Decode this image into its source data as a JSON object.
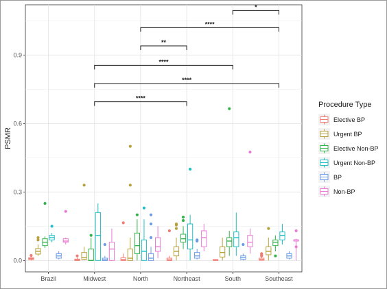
{
  "chart_data": {
    "type": "box",
    "ylabel": "PSMR",
    "yticks": [
      0.0,
      0.3,
      0.6,
      0.9
    ],
    "ylim": [
      -0.05,
      1.12
    ],
    "grid": true,
    "categories": [
      "Brazil",
      "Midwest",
      "North",
      "Northeast",
      "South",
      "Southeast"
    ],
    "legend": {
      "title": "Procedure Type",
      "placement": "right",
      "entries": [
        "Elective BP",
        "Urgent BP",
        "Elective Non-BP",
        "Urgent Non-BP",
        "BP",
        "Non-BP"
      ]
    },
    "colors": {
      "Elective BP": "#f07c74",
      "Urgent BP": "#b7a13a",
      "Elective Non-BP": "#32b34a",
      "Urgent Non-BP": "#1fbfc4",
      "BP": "#6c9be8",
      "Non-BP": "#e87bd3"
    },
    "series": [
      {
        "name": "Elective BP",
        "boxes": [
          {
            "min": 0.0,
            "q1": 0.004,
            "median": 0.008,
            "q3": 0.012,
            "max": 0.015,
            "outliers": [
              0.022
            ]
          },
          {
            "min": 0.0,
            "q1": 0.0,
            "median": 0.002,
            "q3": 0.006,
            "max": 0.012,
            "outliers": [
              0.02
            ]
          },
          {
            "min": 0.0,
            "q1": 0.0,
            "median": 0.004,
            "q3": 0.012,
            "max": 0.03,
            "outliers": [
              0.165
            ]
          },
          {
            "min": 0.0,
            "q1": 0.0,
            "median": 0.003,
            "q3": 0.01,
            "max": 0.02,
            "outliers": [
              0.13
            ]
          },
          {
            "min": 0.0,
            "q1": 0.0,
            "median": 0.002,
            "q3": 0.004,
            "max": 0.006,
            "outliers": []
          },
          {
            "min": 0.0,
            "q1": 0.001,
            "median": 0.004,
            "q3": 0.01,
            "max": 0.015,
            "outliers": [
              0.02,
              0.025,
              0.03
            ]
          }
        ]
      },
      {
        "name": "Urgent BP",
        "boxes": [
          {
            "min": 0.02,
            "q1": 0.028,
            "median": 0.04,
            "q3": 0.052,
            "max": 0.07,
            "outliers": [
              0.09,
              0.1
            ]
          },
          {
            "min": 0.0,
            "q1": 0.005,
            "median": 0.012,
            "q3": 0.035,
            "max": 0.06,
            "outliers": [
              0.33
            ]
          },
          {
            "min": 0.0,
            "q1": 0.0,
            "median": 0.01,
            "q3": 0.05,
            "max": 0.1,
            "outliers": [
              0.33,
              0.5
            ]
          },
          {
            "min": 0.0,
            "q1": 0.02,
            "median": 0.04,
            "q3": 0.06,
            "max": 0.1,
            "outliers": [
              0.14,
              0.155,
              0.16
            ]
          },
          {
            "min": 0.0,
            "q1": 0.015,
            "median": 0.035,
            "q3": 0.06,
            "max": 0.1,
            "outliers": []
          },
          {
            "min": 0.0,
            "q1": 0.025,
            "median": 0.04,
            "q3": 0.06,
            "max": 0.1,
            "outliers": [
              0.14
            ]
          }
        ]
      },
      {
        "name": "Elective Non-BP",
        "boxes": [
          {
            "min": 0.055,
            "q1": 0.065,
            "median": 0.08,
            "q3": 0.095,
            "max": 0.105,
            "outliers": [
              0.25
            ]
          },
          {
            "min": 0.0,
            "q1": 0.0,
            "median": 0.0,
            "q3": 0.05,
            "max": 0.1,
            "outliers": [
              0.11
            ]
          },
          {
            "min": 0.0,
            "q1": 0.03,
            "median": 0.065,
            "q3": 0.12,
            "max": 0.18,
            "outliers": [
              0.2
            ]
          },
          {
            "min": 0.05,
            "q1": 0.08,
            "median": 0.095,
            "q3": 0.115,
            "max": 0.15,
            "outliers": [
              0.19,
              0.175
            ]
          },
          {
            "min": 0.02,
            "q1": 0.06,
            "median": 0.085,
            "q3": 0.1,
            "max": 0.13,
            "outliers": [
              0.665
            ]
          },
          {
            "min": 0.04,
            "q1": 0.065,
            "median": 0.08,
            "q3": 0.09,
            "max": 0.11,
            "outliers": [
              0.02
            ]
          }
        ]
      },
      {
        "name": "Urgent Non-BP",
        "boxes": [
          {
            "min": 0.08,
            "q1": 0.09,
            "median": 0.1,
            "q3": 0.11,
            "max": 0.12,
            "outliers": [
              0.15
            ]
          },
          {
            "min": 0.0,
            "q1": 0.0,
            "median": 0.11,
            "q3": 0.21,
            "max": 0.25,
            "outliers": []
          },
          {
            "min": 0.0,
            "q1": 0.0,
            "median": 0.04,
            "q3": 0.09,
            "max": 0.18,
            "outliers": [
              0.23
            ]
          },
          {
            "min": 0.0,
            "q1": 0.05,
            "median": 0.09,
            "q3": 0.16,
            "max": 0.2,
            "outliers": [
              0.4
            ]
          },
          {
            "min": 0.02,
            "q1": 0.06,
            "median": 0.1,
            "q3": 0.125,
            "max": 0.21,
            "outliers": []
          },
          {
            "min": 0.07,
            "q1": 0.09,
            "median": 0.11,
            "q3": 0.125,
            "max": 0.16,
            "outliers": []
          }
        ]
      },
      {
        "name": "BP",
        "boxes": [
          {
            "min": 0.005,
            "q1": 0.01,
            "median": 0.02,
            "q3": 0.03,
            "max": 0.04,
            "outliers": []
          },
          {
            "min": 0.0,
            "q1": 0.0,
            "median": 0.003,
            "q3": 0.01,
            "max": 0.02,
            "outliers": [
              0.07
            ]
          },
          {
            "min": 0.0,
            "q1": 0.0,
            "median": 0.01,
            "q3": 0.03,
            "max": 0.06,
            "outliers": [
              0.2,
              0.16,
              0.1
            ]
          },
          {
            "min": 0.005,
            "q1": 0.01,
            "median": 0.02,
            "q3": 0.035,
            "max": 0.05,
            "outliers": [
              0.09,
              0.085
            ]
          },
          {
            "min": 0.0,
            "q1": 0.005,
            "median": 0.012,
            "q3": 0.02,
            "max": 0.03,
            "outliers": [
              0.07
            ]
          },
          {
            "min": 0.005,
            "q1": 0.01,
            "median": 0.02,
            "q3": 0.03,
            "max": 0.04,
            "outliers": []
          }
        ]
      },
      {
        "name": "Non-BP",
        "boxes": [
          {
            "min": 0.07,
            "q1": 0.08,
            "median": 0.085,
            "q3": 0.095,
            "max": 0.1,
            "outliers": [
              0.215
            ]
          },
          {
            "min": 0.0,
            "q1": 0.0,
            "median": 0.05,
            "q3": 0.08,
            "max": 0.14,
            "outliers": []
          },
          {
            "min": 0.01,
            "q1": 0.04,
            "median": 0.06,
            "q3": 0.1,
            "max": 0.15,
            "outliers": []
          },
          {
            "min": 0.04,
            "q1": 0.06,
            "median": 0.1,
            "q3": 0.13,
            "max": 0.16,
            "outliers": []
          },
          {
            "min": 0.03,
            "q1": 0.06,
            "median": 0.08,
            "q3": 0.11,
            "max": 0.14,
            "outliers": [
              0.475
            ]
          },
          {
            "min": 0.0,
            "q1": 0.085,
            "median": 0.09,
            "q3": 0.09,
            "max": 0.095,
            "outliers": [
              0.06,
              0.13
            ]
          }
        ]
      }
    ],
    "significance": [
      {
        "from": "Midwest",
        "to": "Northeast",
        "label": "****",
        "y": 0.695
      },
      {
        "from": "Midwest",
        "to": "Southeast",
        "label": "****",
        "y": 0.775
      },
      {
        "from": "Midwest",
        "to": "South",
        "label": "****",
        "y": 0.855
      },
      {
        "from": "North",
        "to": "Northeast",
        "label": "**",
        "y": 0.94
      },
      {
        "from": "North",
        "to": "Southeast",
        "label": "****",
        "y": 1.02
      },
      {
        "from": "South",
        "to": "Southeast",
        "label": "*",
        "y": 1.095
      }
    ]
  }
}
